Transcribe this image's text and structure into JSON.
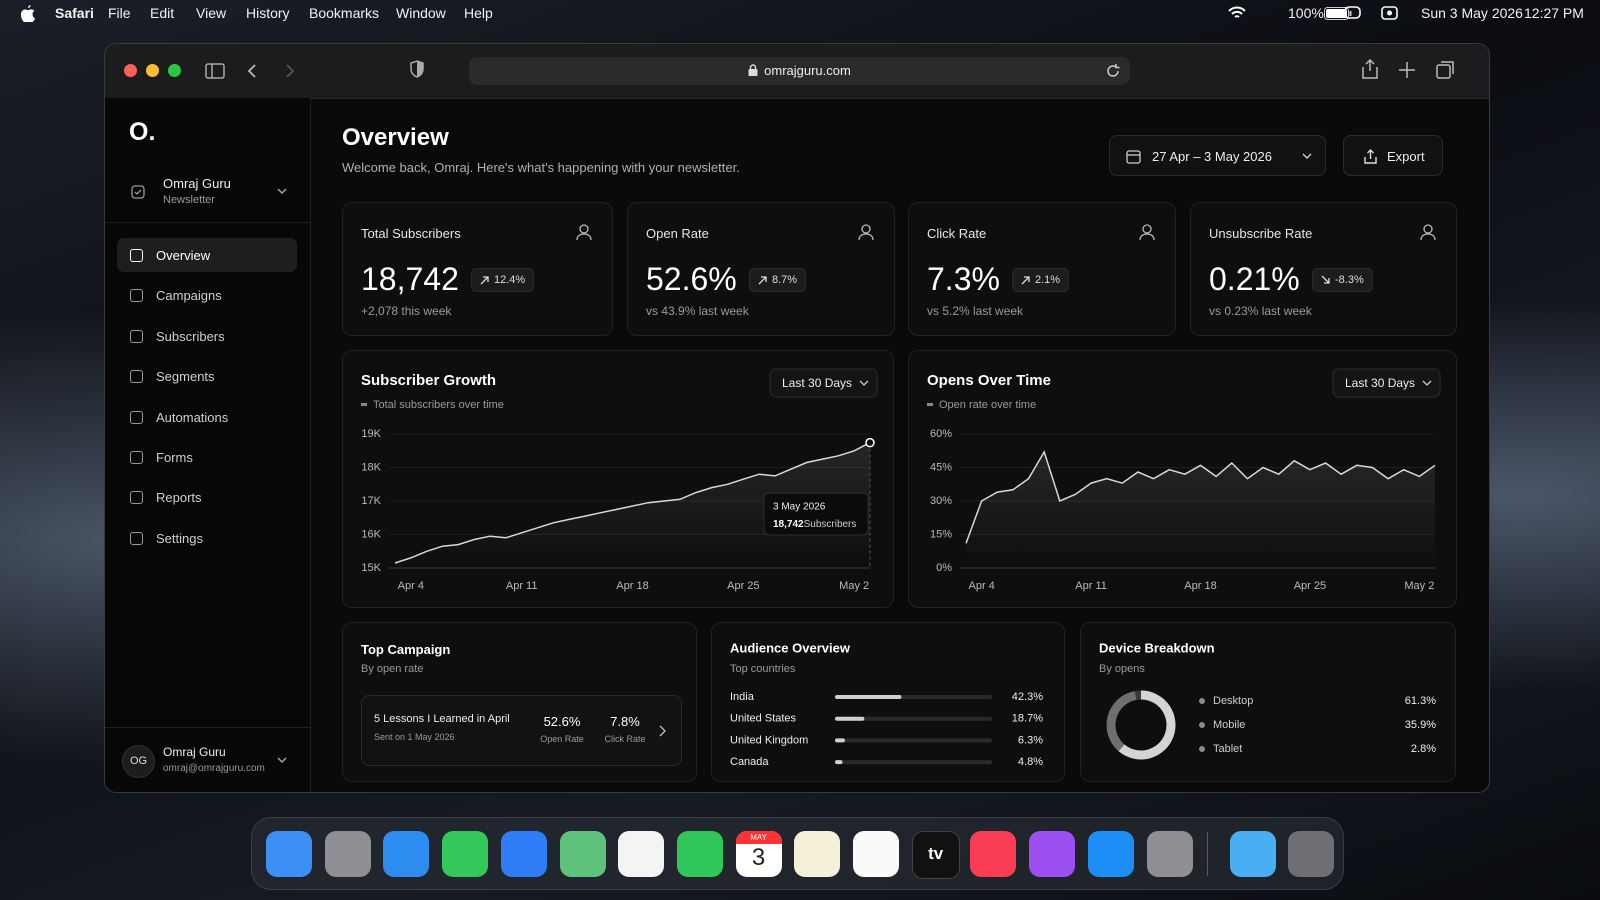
{
  "menubar": {
    "app": "Safari",
    "menus": [
      "File",
      "Edit",
      "View",
      "History",
      "Bookmarks",
      "Window",
      "Help"
    ],
    "battery": "100%",
    "date": "Sun 3 May 2026",
    "time": "12:27 PM"
  },
  "browser": {
    "url": "omrajguru.com"
  },
  "sidebar": {
    "logo": "O.",
    "workspace": {
      "name": "Omraj Guru",
      "type": "Newsletter"
    },
    "nav": [
      "Overview",
      "Campaigns",
      "Subscribers",
      "Segments",
      "Automations",
      "Forms",
      "Reports",
      "Settings"
    ],
    "user": {
      "initials": "OG",
      "name": "Omraj Guru",
      "email": "omraj@omrajguru.com"
    }
  },
  "header": {
    "title": "Overview",
    "subtitle": "Welcome back, Omraj. Here's what's happening with your newsletter.",
    "date_range": "27 Apr – 3 May 2026",
    "export": "Export"
  },
  "stats": [
    {
      "label": "Total Subscribers",
      "value": "18,742",
      "change": "12.4%",
      "note": "+2,078 this week"
    },
    {
      "label": "Open Rate",
      "value": "52.6%",
      "change": "8.7%",
      "note": "vs 43.9% last week"
    },
    {
      "label": "Click Rate",
      "value": "7.3%",
      "change": "2.1%",
      "note": "vs 5.2% last week"
    },
    {
      "label": "Unsubscribe Rate",
      "value": "0.21%",
      "change": "-8.3%",
      "note": "vs 0.23% last week"
    }
  ],
  "chart_data": [
    {
      "type": "line",
      "title": "Subscriber Growth",
      "subtitle": "Total subscribers over time",
      "range": "Last 30 Days",
      "categories": [
        null,
        "Apr 4",
        null,
        null,
        null,
        null,
        null,
        null,
        "Apr 11",
        null,
        null,
        null,
        null,
        null,
        null,
        "Apr 18",
        null,
        null,
        null,
        null,
        null,
        null,
        "Apr 25",
        null,
        null,
        null,
        null,
        null,
        null,
        "May 2",
        null
      ],
      "values": [
        15150,
        15300,
        15500,
        15650,
        15700,
        15850,
        15950,
        15900,
        16050,
        16200,
        16350,
        16450,
        16550,
        16650,
        16750,
        16850,
        16950,
        17000,
        17050,
        17250,
        17400,
        17500,
        17650,
        17800,
        17750,
        17950,
        18150,
        18250,
        18350,
        18500,
        18742
      ],
      "color": "#d9d9d9",
      "ylim": [
        15000,
        19000
      ],
      "yticks": [
        {
          "value": 15000,
          "label": "15K"
        },
        {
          "value": 16000,
          "label": "16K"
        },
        {
          "value": 17000,
          "label": "17K"
        },
        {
          "value": 18000,
          "label": "18K"
        },
        {
          "value": 19000,
          "label": "19K"
        }
      ],
      "grid": true,
      "tooltip": {
        "date": "3 May 2026",
        "value": "18,742",
        "label": "Subscribers"
      }
    },
    {
      "type": "line",
      "title": "Opens Over Time",
      "subtitle": "Open rate over time",
      "range": "Last 30 Days",
      "categories": [
        null,
        "Apr 4",
        null,
        null,
        null,
        null,
        null,
        null,
        "Apr 11",
        null,
        null,
        null,
        null,
        null,
        null,
        "Apr 18",
        null,
        null,
        null,
        null,
        null,
        null,
        "Apr 25",
        null,
        null,
        null,
        null,
        null,
        null,
        "May 2",
        null
      ],
      "values": [
        11,
        30,
        34,
        35,
        40,
        52,
        30,
        33,
        38,
        40,
        38,
        43,
        40,
        44,
        42,
        46,
        41,
        47,
        40,
        45,
        42,
        48,
        44,
        47,
        42,
        46,
        45,
        40,
        44,
        41,
        46
      ],
      "color": "#d9d9d9",
      "ylim": [
        0,
        60
      ],
      "yticks": [
        {
          "value": 0,
          "label": "0%"
        },
        {
          "value": 15,
          "label": "15%"
        },
        {
          "value": 30,
          "label": "30%"
        },
        {
          "value": 45,
          "label": "45%"
        },
        {
          "value": 60,
          "label": "60%"
        }
      ],
      "grid": true
    },
    {
      "type": "bar",
      "orientation": "horizontal",
      "title": "Audience Overview",
      "subtitle": "Top countries",
      "categories": [
        "India",
        "United States",
        "United Kingdom",
        "Canada"
      ],
      "values": [
        42.3,
        18.7,
        6.3,
        4.8
      ],
      "value_labels": [
        "42.3%",
        "18.7%",
        "6.3%",
        "4.8%"
      ],
      "color": "#cfcfcf",
      "xlim": [
        0,
        100
      ]
    },
    {
      "type": "pie",
      "donut": true,
      "title": "Device Breakdown",
      "subtitle": "By opens",
      "categories": [
        "Desktop",
        "Mobile",
        "Tablet"
      ],
      "values": [
        61.3,
        35.9,
        2.8
      ],
      "value_labels": [
        "61.3%",
        "35.9%",
        "2.8%"
      ],
      "colors": [
        "#d4d4d4",
        "#6e6e6e",
        "#3a3a3a"
      ]
    }
  ],
  "top_campaign": {
    "title": "Top Campaign",
    "subtitle": "By open rate",
    "name": "5 Lessons I Learned in April",
    "sent": "Sent on 1 May 2026",
    "open_rate": "52.6%",
    "open_label": "Open Rate",
    "click_rate": "7.8%",
    "click_label": "Click Rate"
  },
  "dock": {
    "calendar_month": "MAY",
    "calendar_day": "3",
    "tv": "tv"
  }
}
